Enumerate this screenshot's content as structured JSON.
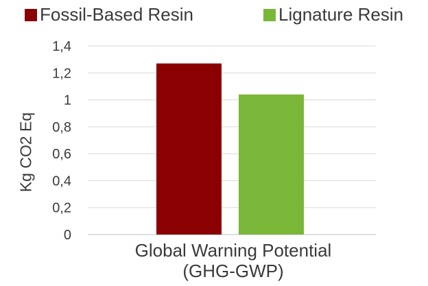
{
  "chart_data": {
    "type": "bar",
    "categories": [
      "Global Warning Potential (GHG-GWP)"
    ],
    "category_lines": [
      "Global Warning Potential",
      "(GHG-GWP)"
    ],
    "series": [
      {
        "name": "Fossil-Based Resin",
        "values": [
          1.27
        ],
        "color": "#8b0000"
      },
      {
        "name": "Lignature Resin",
        "values": [
          1.04
        ],
        "color": "#7ab738"
      }
    ],
    "xlabel": "",
    "ylabel": "Kg CO2 Eq",
    "ylim": [
      0,
      1.4
    ],
    "yticks": [
      "0",
      "0,2",
      "0,4",
      "0,6",
      "0,8",
      "1",
      "1,2",
      "1,4"
    ],
    "grid": true,
    "legend": "top"
  }
}
